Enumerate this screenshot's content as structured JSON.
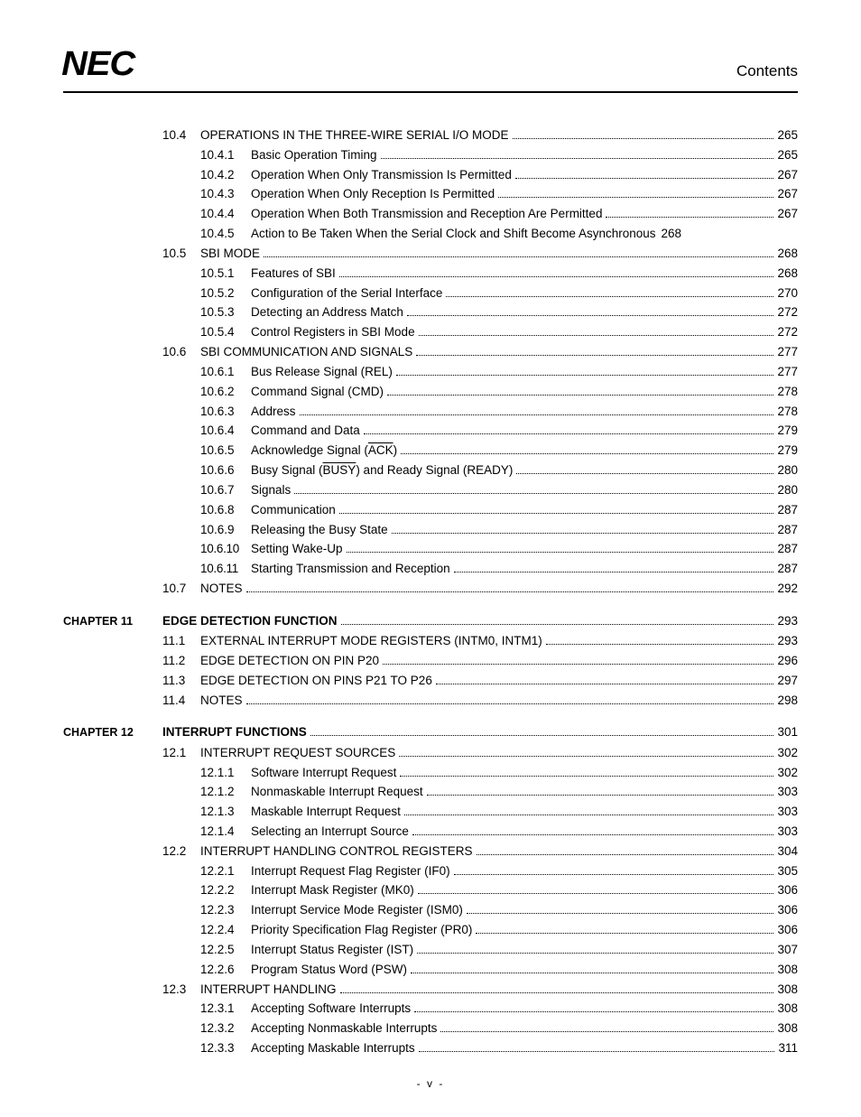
{
  "header": {
    "logo_text": "NEC",
    "title": "Contents"
  },
  "footer": {
    "page_label": "- v -"
  },
  "toc": [
    {
      "level": "section",
      "num": "10.4",
      "title": "OPERATIONS IN THE THREE-WIRE SERIAL I/O MODE",
      "page": "265"
    },
    {
      "level": "subsection",
      "num": "10.4.1",
      "title": "Basic Operation Timing",
      "page": "265"
    },
    {
      "level": "subsection",
      "num": "10.4.2",
      "title": "Operation When Only Transmission Is Permitted",
      "page": "267"
    },
    {
      "level": "subsection",
      "num": "10.4.3",
      "title": "Operation When Only Reception Is Permitted",
      "page": "267"
    },
    {
      "level": "subsection",
      "num": "10.4.4",
      "title": "Operation When Both Transmission and Reception Are Permitted",
      "page": "267"
    },
    {
      "level": "subsection",
      "num": "10.4.5",
      "title": "Action to Be Taken When the Serial Clock and Shift Become Asynchronous",
      "page": "268",
      "nodots": true
    },
    {
      "level": "section",
      "num": "10.5",
      "title": "SBI MODE",
      "page": "268"
    },
    {
      "level": "subsection",
      "num": "10.5.1",
      "title": "Features of SBI",
      "page": "268"
    },
    {
      "level": "subsection",
      "num": "10.5.2",
      "title": "Configuration of the Serial Interface",
      "page": "270"
    },
    {
      "level": "subsection",
      "num": "10.5.3",
      "title": "Detecting an Address Match",
      "page": "272"
    },
    {
      "level": "subsection",
      "num": "10.5.4",
      "title": "Control Registers in SBI Mode",
      "page": "272"
    },
    {
      "level": "section",
      "num": "10.6",
      "title": "SBI COMMUNICATION AND SIGNALS",
      "page": "277"
    },
    {
      "level": "subsection",
      "num": "10.6.1",
      "title": "Bus Release Signal (REL)",
      "page": "277"
    },
    {
      "level": "subsection",
      "num": "10.6.2",
      "title": "Command Signal (CMD)",
      "page": "278"
    },
    {
      "level": "subsection",
      "num": "10.6.3",
      "title": "Address",
      "page": "278"
    },
    {
      "level": "subsection",
      "num": "10.6.4",
      "title": "Command and Data",
      "page": "279"
    },
    {
      "level": "subsection",
      "num": "10.6.5",
      "title_html": "Acknowledge Signal (<span class=\"overline\">ACK</span>)",
      "page": "279"
    },
    {
      "level": "subsection",
      "num": "10.6.6",
      "title_html": "Busy Signal (<span class=\"overline\">BUSY</span>) and Ready Signal (READY)",
      "page": "280"
    },
    {
      "level": "subsection",
      "num": "10.6.7",
      "title": "Signals",
      "page": "280"
    },
    {
      "level": "subsection",
      "num": "10.6.8",
      "title": "Communication",
      "page": "287"
    },
    {
      "level": "subsection",
      "num": "10.6.9",
      "title": "Releasing the Busy State",
      "page": "287"
    },
    {
      "level": "subsection",
      "num": "10.6.10",
      "title": "Setting Wake-Up",
      "page": "287",
      "tight": true
    },
    {
      "level": "subsection",
      "num": "10.6.11",
      "title": "Starting Transmission and Reception",
      "page": "287",
      "tight": true
    },
    {
      "level": "section",
      "num": "10.7",
      "title": "NOTES",
      "page": "292"
    },
    {
      "level": "gap"
    },
    {
      "level": "chapter",
      "chapter_label": "CHAPTER 11",
      "title": "EDGE DETECTION FUNCTION",
      "page": "293",
      "bold": true
    },
    {
      "level": "section",
      "num": "11.1",
      "title": "EXTERNAL INTERRUPT MODE REGISTERS (INTM0, INTM1)",
      "page": "293"
    },
    {
      "level": "section",
      "num": "11.2",
      "title": "EDGE DETECTION ON PIN P20",
      "page": "296"
    },
    {
      "level": "section",
      "num": "11.3",
      "title": "EDGE DETECTION ON PINS P21 TO P26",
      "page": "297"
    },
    {
      "level": "section",
      "num": "11.4",
      "title": "NOTES",
      "page": "298"
    },
    {
      "level": "gap"
    },
    {
      "level": "chapter",
      "chapter_label": "CHAPTER 12",
      "title": "INTERRUPT FUNCTIONS",
      "page": "301",
      "bold": true
    },
    {
      "level": "section",
      "num": "12.1",
      "title": "INTERRUPT REQUEST SOURCES",
      "page": "302"
    },
    {
      "level": "subsection",
      "num": "12.1.1",
      "title": "Software Interrupt Request",
      "page": "302"
    },
    {
      "level": "subsection",
      "num": "12.1.2",
      "title": "Nonmaskable Interrupt Request",
      "page": "303"
    },
    {
      "level": "subsection",
      "num": "12.1.3",
      "title": "Maskable Interrupt Request",
      "page": "303"
    },
    {
      "level": "subsection",
      "num": "12.1.4",
      "title": "Selecting an Interrupt Source",
      "page": "303"
    },
    {
      "level": "section",
      "num": "12.2",
      "title": "INTERRUPT HANDLING CONTROL REGISTERS",
      "page": "304"
    },
    {
      "level": "subsection",
      "num": "12.2.1",
      "title": "Interrupt Request Flag Register (IF0)",
      "page": "305"
    },
    {
      "level": "subsection",
      "num": "12.2.2",
      "title": "Interrupt Mask Register (MK0)",
      "page": "306"
    },
    {
      "level": "subsection",
      "num": "12.2.3",
      "title": "Interrupt Service Mode Register (ISM0)",
      "page": "306"
    },
    {
      "level": "subsection",
      "num": "12.2.4",
      "title": "Priority Specification Flag Register (PR0)",
      "page": "306"
    },
    {
      "level": "subsection",
      "num": "12.2.5",
      "title": "Interrupt Status Register (IST)",
      "page": "307"
    },
    {
      "level": "subsection",
      "num": "12.2.6",
      "title": "Program Status Word (PSW)",
      "page": "308"
    },
    {
      "level": "section",
      "num": "12.3",
      "title": "INTERRUPT HANDLING",
      "page": "308"
    },
    {
      "level": "subsection",
      "num": "12.3.1",
      "title": "Accepting Software Interrupts",
      "page": "308"
    },
    {
      "level": "subsection",
      "num": "12.3.2",
      "title": "Accepting Nonmaskable Interrupts",
      "page": "308"
    },
    {
      "level": "subsection",
      "num": "12.3.3",
      "title": "Accepting Maskable Interrupts",
      "page": "311"
    }
  ]
}
